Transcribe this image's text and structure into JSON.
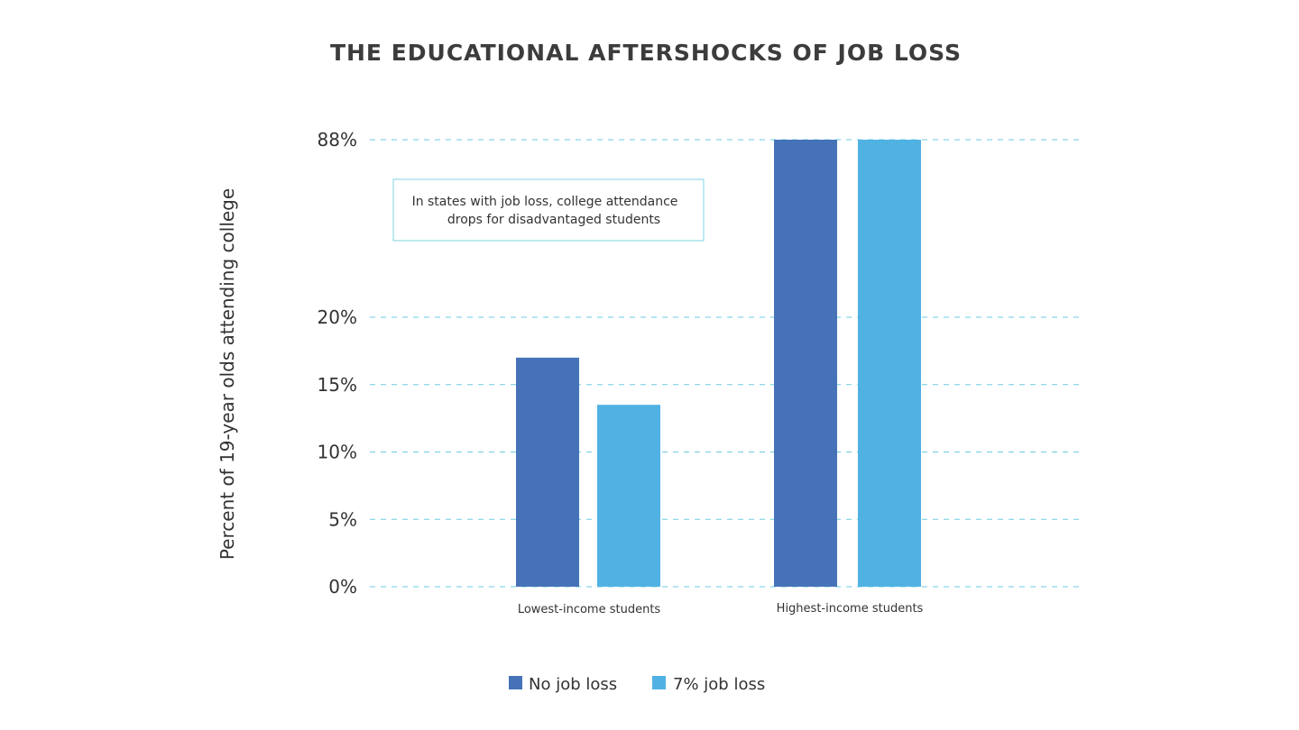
{
  "chart_data": {
    "type": "bar",
    "title": "THE EDUCATIONAL AFTERSHOCKS OF JOB LOSS",
    "xlabel": "",
    "ylabel": "Percent of 19-year olds attending college",
    "categories": [
      "Lowest-income students",
      "Highest-income students"
    ],
    "series": [
      {
        "name": "No job loss",
        "color": "#4673b8",
        "values": [
          17,
          88
        ]
      },
      {
        "name": "7% job loss",
        "color": "#50b2e3",
        "values": [
          13.5,
          88
        ]
      }
    ],
    "y_ticks": [
      {
        "value": 0,
        "label": "0%"
      },
      {
        "value": 5,
        "label": "5%"
      },
      {
        "value": 10,
        "label": "10%"
      },
      {
        "value": 15,
        "label": "15%"
      },
      {
        "value": 20,
        "label": "20%"
      },
      {
        "value": 88,
        "label": "88%"
      }
    ],
    "y_axis_break": {
      "after": 20,
      "before": 88
    },
    "ylim": [
      0,
      88
    ],
    "grid": true,
    "gridline_color": "#6dcbe0",
    "legend_position": "bottom-center",
    "annotation": {
      "lines": [
        "In states with job loss, college attendance",
        "drops for disadvantaged students"
      ],
      "border_color": "#7fd3e3"
    }
  }
}
